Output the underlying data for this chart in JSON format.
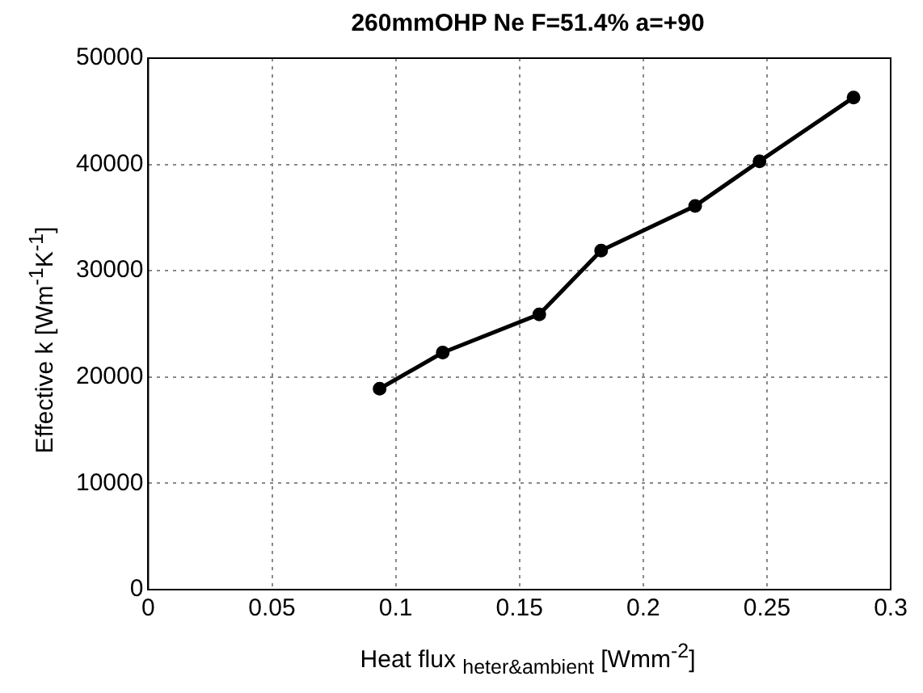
{
  "chart_data": {
    "type": "line",
    "title": "260mmOHP Ne F=51.4% a=+90",
    "xlabel": "Heat flux $_{heter&ambient}$ [Wmm$^{-2}$]",
    "ylabel": "Effective k [Wm$^{-1}$K$^{-1}$]",
    "x": [
      0.0935,
      0.119,
      0.158,
      0.183,
      0.221,
      0.247,
      0.285
    ],
    "series": [
      {
        "color": "#000000",
        "values": [
          18900,
          22300,
          25900,
          31900,
          36100,
          40300,
          46300
        ]
      }
    ],
    "xlim": [
      0,
      0.3
    ],
    "xticks": [
      0,
      0.05,
      0.1,
      0.15,
      0.2,
      0.25,
      0.3
    ],
    "ylim": [
      0,
      50000
    ],
    "yticks": [
      0,
      10000,
      20000,
      30000,
      40000,
      50000
    ],
    "grid": true,
    "legend": false,
    "marker": "circle",
    "line_style": "solid"
  }
}
